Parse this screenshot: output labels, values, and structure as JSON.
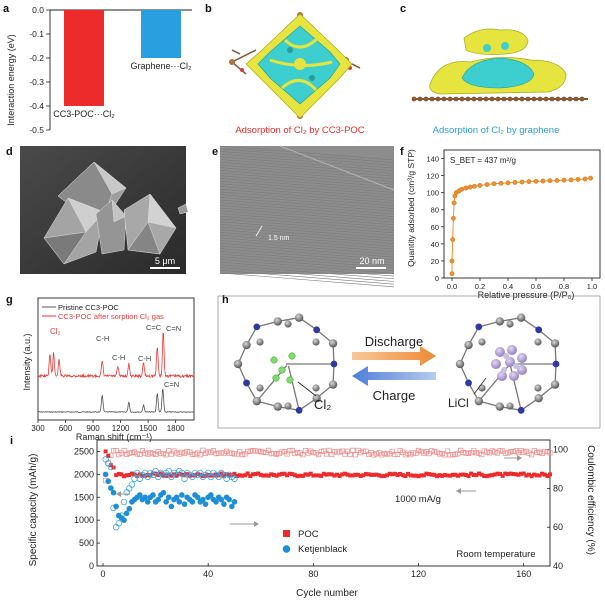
{
  "panel_labels": [
    "a",
    "b",
    "c",
    "d",
    "e",
    "f",
    "g",
    "h",
    "i"
  ],
  "colors": {
    "poc": "#ee2b2b",
    "graphene": "#2a9fe0",
    "ketjen": "#1e8fd6",
    "orange": "#f0902c",
    "raman_pristine": "#555555",
    "raman_sorbed": "#e83a3a",
    "iso_yellow": "#e8e83a",
    "iso_cyan": "#3bd3d3"
  },
  "captions": {
    "b": "Adsorption of Cl₂ by CC3-POC",
    "c": "Adsorption of Cl₂ by graphene",
    "d_scale": "5 μm",
    "e_scale": "20 nm",
    "e_spacing": "1.5 nm"
  },
  "panel_h": {
    "discharge": "Discharge",
    "charge": "Charge",
    "cl2": "Cl₂",
    "licl": "LiCl"
  },
  "chart_data": [
    {
      "id": "a",
      "type": "bar",
      "ylabel": "Interaction energy (eV)",
      "ylim": [
        -0.5,
        0.0
      ],
      "yticks": [
        "0.0",
        "-0.1",
        "-0.2",
        "-0.3",
        "-0.4",
        "-0.5"
      ],
      "series": [
        {
          "name": "CC3-POC···Cl₂",
          "value": -0.4
        },
        {
          "name": "Graphene···Cl₂",
          "value": -0.2
        }
      ]
    },
    {
      "id": "f",
      "type": "scatter",
      "xlabel": "Relative pressure (P/P₀)",
      "ylabel": "Quantity adsorbed (cm³/g STP)",
      "annotation": "S_BET = 437 m²/g",
      "xlim": [
        0,
        1.0
      ],
      "ylim": [
        0,
        150
      ],
      "xticks": [
        "0.0",
        "0.2",
        "0.4",
        "0.6",
        "0.8",
        "1.0"
      ],
      "yticks": [
        "0",
        "20",
        "40",
        "60",
        "80",
        "100",
        "120",
        "140"
      ],
      "x": [
        0.0,
        0.0,
        0.005,
        0.01,
        0.015,
        0.02,
        0.03,
        0.05,
        0.07,
        0.1,
        0.13,
        0.16,
        0.2,
        0.25,
        0.3,
        0.35,
        0.4,
        0.45,
        0.5,
        0.55,
        0.6,
        0.65,
        0.7,
        0.75,
        0.8,
        0.85,
        0.9,
        0.95,
        0.99
      ],
      "y": [
        5,
        20,
        45,
        70,
        88,
        96,
        100,
        102,
        104,
        105.5,
        106.5,
        107.5,
        108.5,
        109.5,
        110.5,
        111,
        111.5,
        112,
        112.5,
        113,
        113.3,
        113.6,
        114,
        114.3,
        114.6,
        115,
        115.5,
        116,
        117
      ]
    },
    {
      "id": "g",
      "type": "line",
      "xlabel": "Raman shift (cm⁻¹)",
      "ylabel": "Intensity (a.u.)",
      "xlim": [
        300,
        2000
      ],
      "xticks": [
        "300",
        "600",
        "900",
        "1200",
        "1500",
        "1800"
      ],
      "legend": [
        "Pristine CC3-POC",
        "CC3-POC after sorption Cl₂ gas"
      ],
      "peak_labels": [
        "Cl₂",
        "C-H",
        "C-H",
        "C-H",
        "C=C",
        "C=N",
        "C=N"
      ],
      "series": [
        {
          "name": "Pristine CC3-POC",
          "peaks": [
            [
              1000,
              0.5
            ],
            [
              1290,
              0.3
            ],
            [
              1450,
              0.2
            ],
            [
              1600,
              0.55
            ],
            [
              1660,
              0.7
            ]
          ]
        },
        {
          "name": "CC3-POC after sorption Cl₂ gas",
          "peaks": [
            [
              430,
              0.7
            ],
            [
              470,
              0.8
            ],
            [
              530,
              0.55
            ],
            [
              1000,
              0.5
            ],
            [
              1170,
              0.3
            ],
            [
              1290,
              0.4
            ],
            [
              1450,
              0.45
            ],
            [
              1600,
              1.0
            ],
            [
              1665,
              1.5
            ]
          ]
        }
      ]
    },
    {
      "id": "i",
      "type": "scatter",
      "xlabel": "Cycle number",
      "ylabel": "Specific capacity (mAh/g)",
      "y2label": "Coulombic efficiency (%)",
      "xlim": [
        0,
        170
      ],
      "ylim": [
        0,
        2750
      ],
      "y2lim": [
        40,
        105
      ],
      "xticks": [
        "0",
        "40",
        "80",
        "120",
        "160"
      ],
      "yticks": [
        "0",
        "500",
        "1000",
        "1500",
        "2000",
        "2500"
      ],
      "y2ticks": [
        "40",
        "60",
        "80",
        "100"
      ],
      "annotations": [
        "1000 mA/g",
        "Room temperature"
      ],
      "legend": [
        "POC",
        "Ketjenblack"
      ],
      "poc_capacity": {
        "first": [
          2500,
          2400,
          2200,
          2150
        ],
        "plateau": 1990
      },
      "poc_ce": {
        "first": [
          84,
          93,
          97
        ],
        "plateau": 98.5
      },
      "ketjen_capacity": [
        2000,
        1850,
        1700,
        1600,
        1300,
        1100,
        1050,
        1000,
        1150,
        1250,
        1400,
        1450,
        1500,
        1550,
        1450,
        1500,
        1400,
        1500,
        1550,
        1400,
        1450,
        1550,
        1600,
        1400,
        1500,
        1300,
        1450,
        1500,
        1400,
        1550,
        1350,
        1500,
        1450,
        1400,
        1550,
        1500,
        1400,
        1450,
        1350,
        1500,
        1550,
        1450,
        1400,
        1500,
        1450,
        1350,
        1500,
        1450,
        1300,
        1400
      ],
      "ketjen_ce": [
        95,
        93,
        91,
        70,
        60,
        62,
        66,
        73,
        78,
        80,
        82,
        85,
        88,
        85,
        87,
        88,
        86,
        88,
        87,
        89,
        86,
        88,
        87,
        88,
        89,
        86,
        88,
        87,
        89,
        88,
        85,
        88,
        87,
        86,
        88,
        87,
        88,
        86,
        87,
        88,
        86,
        88,
        87,
        86,
        88,
        87,
        85,
        87,
        86,
        85
      ]
    }
  ]
}
